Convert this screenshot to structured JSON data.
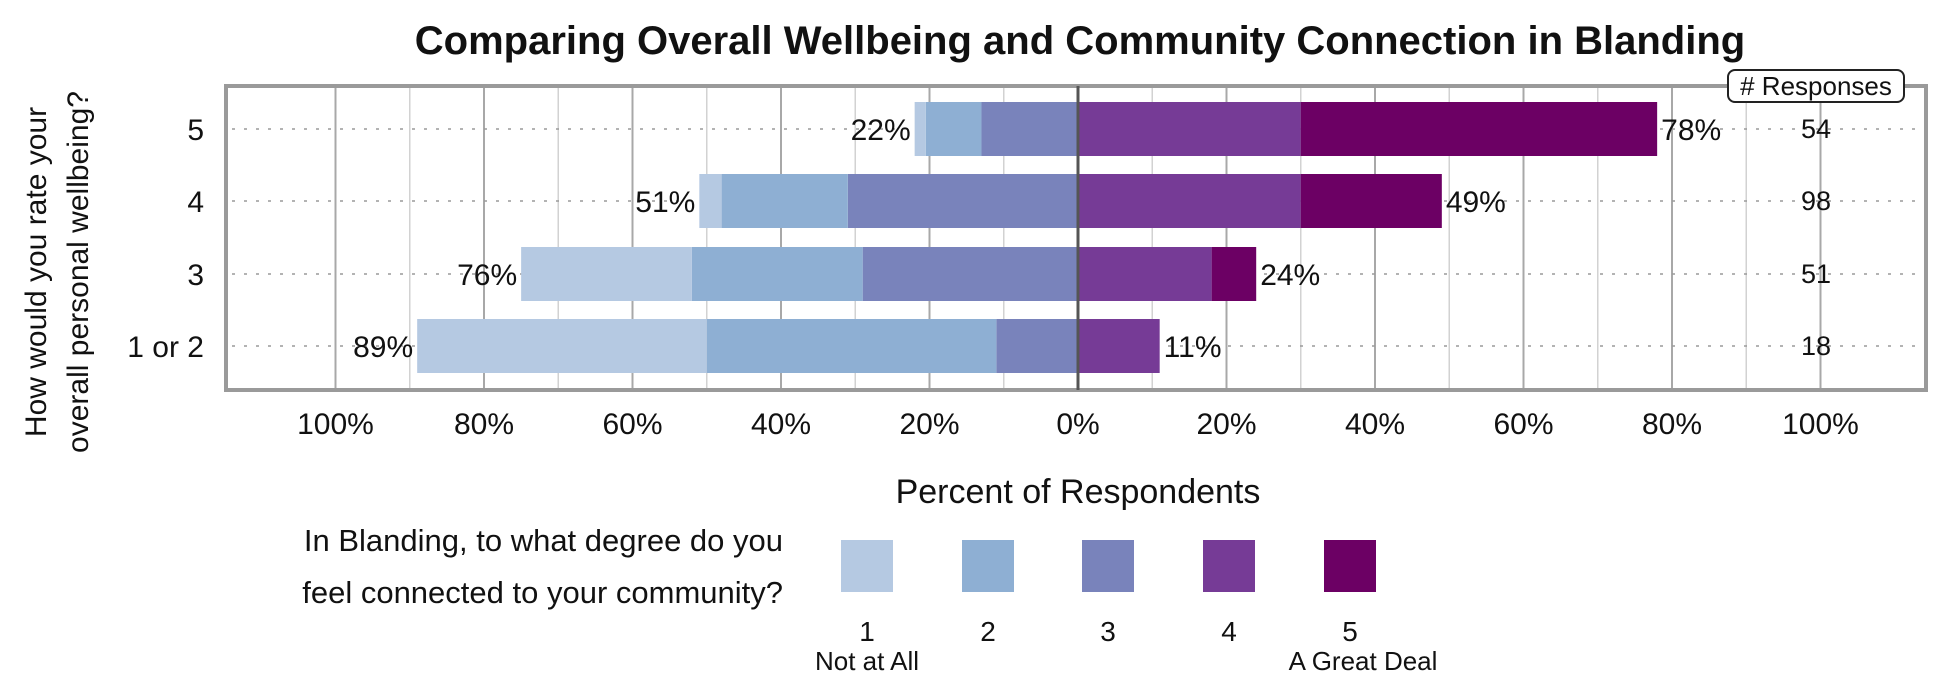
{
  "chart_data": {
    "type": "bar",
    "orientation": "horizontal",
    "stacked": "diverging",
    "title": "Comparing Overall Wellbeing and Community Connection in Blanding",
    "ylabel_lines": [
      "How would you rate your",
      "overall personal wellbeing?"
    ],
    "xlabel": "Percent of Respondents",
    "x_tick_labels": [
      "100%",
      "80%",
      "60%",
      "40%",
      "20%",
      "0%",
      "20%",
      "40%",
      "60%",
      "80%",
      "100%"
    ],
    "xlim": [
      -100,
      100
    ],
    "grid": true,
    "categories": [
      "5",
      "4",
      "3",
      "1 or 2"
    ],
    "series": [
      {
        "name": "1",
        "side": "negative",
        "values": [
          1.5,
          3,
          23,
          39
        ]
      },
      {
        "name": "2",
        "side": "negative",
        "values": [
          7.5,
          17,
          23,
          39
        ]
      },
      {
        "name": "3",
        "side": "negative",
        "values": [
          13,
          31,
          29,
          11
        ]
      },
      {
        "name": "4",
        "side": "positive",
        "values": [
          30,
          30,
          18,
          11
        ]
      },
      {
        "name": "5",
        "side": "positive",
        "values": [
          48,
          19,
          6,
          0
        ]
      }
    ],
    "negative_totals": [
      "22%",
      "51%",
      "76%",
      "89%"
    ],
    "positive_totals": [
      "78%",
      "49%",
      "24%",
      "11%"
    ],
    "responses_header": "# Responses",
    "responses": [
      "54",
      "98",
      "51",
      "18"
    ],
    "legend": {
      "title_lines": [
        "In Blanding, to what degree do you",
        "feel connected to your community?"
      ],
      "placement": "bottom",
      "items": [
        "1",
        "2",
        "3",
        "4",
        "5"
      ],
      "low_anchor": "Not at All",
      "high_anchor": "A Great Deal"
    },
    "colors": [
      "#b5c9e2",
      "#8eafd3",
      "#7983bb",
      "#763b96",
      "#6c0064"
    ]
  }
}
